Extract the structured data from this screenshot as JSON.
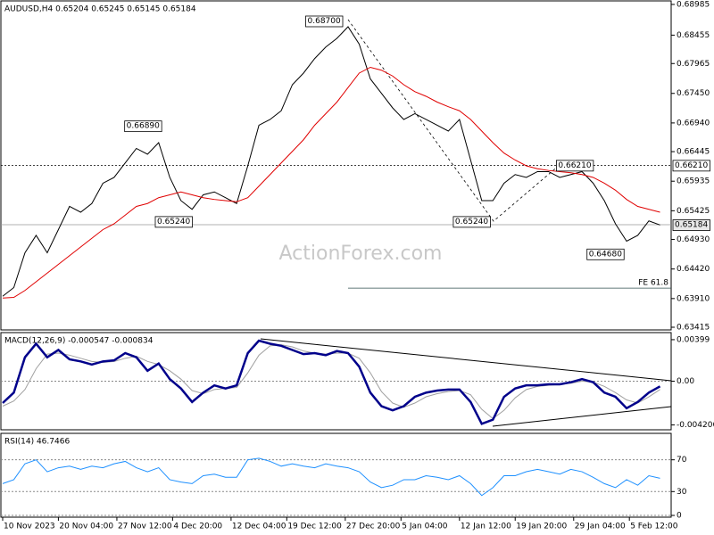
{
  "chart_data": [
    {
      "type": "line",
      "title": "AUDUSD,H4 0.65204 0.65245 0.65145 0.65184",
      "watermark": "ActionForex.com",
      "x": [
        0,
        4,
        8,
        12,
        16,
        20,
        24,
        28,
        32,
        36,
        40,
        44,
        48,
        52,
        56,
        60,
        64,
        68,
        72,
        76,
        80,
        84,
        88,
        92,
        96,
        100,
        104,
        108,
        112,
        116,
        120,
        124,
        128,
        132,
        136,
        140,
        144,
        148,
        152,
        156,
        160,
        164,
        168,
        172,
        176,
        180,
        184,
        188,
        192,
        196,
        200,
        204,
        208,
        212,
        216,
        220,
        224,
        228,
        232,
        236
      ],
      "xlim": [
        0,
        240
      ],
      "ylim": [
        0.63369,
        0.69046
      ],
      "yticks": [
        0.68985,
        0.68455,
        0.67965,
        {
          "value": 0.6745,
          "label": "0.67450"
        },
        {
          "value": 0.6694,
          "label": "0.66940"
        },
        0.66445,
        0.65935,
        0.65425,
        {
          "value": 0.6493,
          "label": "0.64930"
        },
        {
          "value": 0.6442,
          "label": "0.64420"
        },
        {
          "value": 0.6391,
          "label": "0.63910"
        },
        0.63415
      ],
      "series": [
        {
          "color": "#000000",
          "width": 1,
          "values": [
            0.6395,
            0.641,
            0.647,
            0.65,
            0.647,
            0.651,
            0.655,
            0.654,
            0.6555,
            0.659,
            0.66,
            0.6625,
            0.665,
            0.664,
            0.666,
            0.66,
            0.656,
            0.6545,
            0.657,
            0.6575,
            0.6565,
            0.6555,
            0.662,
            0.669,
            0.67,
            0.6715,
            0.676,
            0.678,
            0.6805,
            0.6825,
            0.684,
            0.686,
            0.683,
            0.677,
            0.6745,
            0.672,
            0.67,
            0.671,
            0.67,
            0.669,
            0.668,
            0.67,
            0.663,
            0.656,
            0.656,
            0.659,
            0.6605,
            0.66,
            0.661,
            0.661,
            0.66,
            0.6605,
            0.661,
            0.659,
            0.656,
            0.652,
            0.649,
            0.65,
            0.6525,
            0.6518
          ]
        },
        {
          "color": "#e00000",
          "width": 1,
          "values": [
            0.6392,
            0.6393,
            0.6405,
            0.642,
            0.6435,
            0.645,
            0.6465,
            0.648,
            0.6495,
            0.651,
            0.652,
            0.6535,
            0.655,
            0.6555,
            0.6565,
            0.657,
            0.6575,
            0.657,
            0.6565,
            0.6562,
            0.656,
            0.6558,
            0.6565,
            0.6585,
            0.6605,
            0.6625,
            0.6645,
            0.6665,
            0.669,
            0.671,
            0.673,
            0.6755,
            0.678,
            0.679,
            0.6785,
            0.6775,
            0.676,
            0.6748,
            0.674,
            0.673,
            0.6722,
            0.6715,
            0.67,
            0.668,
            0.666,
            0.6642,
            0.663,
            0.662,
            0.6615,
            0.6612,
            0.661,
            0.6608,
            0.6605,
            0.66,
            0.659,
            0.6578,
            0.6562,
            0.655,
            0.6545,
            0.654
          ]
        }
      ],
      "hlines": [
        {
          "value": 0.6621,
          "label": "0.66210",
          "style": "dotted"
        },
        {
          "value": 0.65184,
          "label": "0.65184",
          "style": "solid"
        }
      ],
      "fe_line": {
        "text": "FE 61.8",
        "value": 0.6409,
        "x_start": 124
      },
      "annotations": [
        {
          "text": "0.68700",
          "x": 122,
          "y": 0.687
        },
        {
          "text": "0.66890",
          "x": 57,
          "y": 0.6689
        },
        {
          "text": "0.65240",
          "x": 68,
          "y": 0.6524
        },
        {
          "text": "0.65240",
          "x": 175,
          "y": 0.6524
        },
        {
          "text": "0.66210",
          "x": 212,
          "y": 0.6621
        },
        {
          "text": "0.64680",
          "x": 223,
          "y": 0.6468
        }
      ]
    },
    {
      "type": "line",
      "title": "MACD(12,26,9) -0.000547 -0.000834",
      "x": [
        0,
        4,
        8,
        12,
        16,
        20,
        24,
        28,
        32,
        36,
        40,
        44,
        48,
        52,
        56,
        60,
        64,
        68,
        72,
        76,
        80,
        84,
        88,
        92,
        96,
        100,
        104,
        108,
        112,
        116,
        120,
        124,
        128,
        132,
        136,
        140,
        144,
        148,
        152,
        156,
        160,
        164,
        168,
        172,
        176,
        180,
        184,
        188,
        192,
        196,
        200,
        204,
        208,
        212,
        216,
        220,
        224,
        228,
        232,
        236
      ],
      "xlim": [
        0,
        240
      ],
      "ylim": [
        -0.00467,
        0.00467
      ],
      "yticks": [
        0.00399,
        {
          "value": 0,
          "label": "0.00"
        },
        -0.004206
      ],
      "series": [
        {
          "color": "#a0a0a0",
          "width": 1,
          "values": [
            -0.0024,
            -0.0019,
            -0.0008,
            0.0012,
            0.0026,
            0.0027,
            0.0025,
            0.0022,
            0.0019,
            0.0018,
            0.0019,
            0.0022,
            0.0024,
            0.0019,
            0.0016,
            0.001,
            0.0002,
            -0.0009,
            -0.0012,
            -0.0008,
            -0.0007,
            -0.0006,
            0.0008,
            0.0025,
            0.0034,
            0.0035,
            0.0033,
            0.0029,
            0.0027,
            0.0026,
            0.0027,
            0.0027,
            0.0022,
            0.0008,
            -0.001,
            -0.0021,
            -0.0025,
            -0.0021,
            -0.0015,
            -0.0012,
            -0.001,
            -0.0009,
            -0.0013,
            -0.0027,
            -0.0036,
            -0.0028,
            -0.0016,
            -0.0008,
            -0.0005,
            -0.0004,
            -0.0003,
            -0.0002,
            0,
            -0.0001,
            -0.0005,
            -0.0011,
            -0.0018,
            -0.0021,
            -0.0015,
            -0.0008
          ]
        },
        {
          "color": "#00008b",
          "width": 2.5,
          "values": [
            -0.0021,
            -0.0011,
            0.0023,
            0.0036,
            0.0023,
            0.003,
            0.0021,
            0.0019,
            0.0016,
            0.0019,
            0.002,
            0.0027,
            0.0023,
            0.001,
            0.0017,
            0.0002,
            -0.0007,
            -0.002,
            -0.0011,
            -0.0004,
            -0.0007,
            -0.0004,
            0.0027,
            0.0039,
            0.0036,
            0.0034,
            0.003,
            0.0026,
            0.0027,
            0.0025,
            0.0029,
            0.0027,
            0.0014,
            -0.0011,
            -0.0024,
            -0.0028,
            -0.0024,
            -0.0015,
            -0.0011,
            -0.0009,
            -0.0008,
            -0.0008,
            -0.002,
            -0.0041,
            -0.0037,
            -0.0015,
            -0.0007,
            -0.0004,
            -0.0004,
            -0.0003,
            -0.0003,
            -0.0001,
            0.0002,
            -0.0001,
            -0.0011,
            -0.0015,
            -0.0026,
            -0.002,
            -0.0011,
            -0.0005
          ]
        }
      ]
    },
    {
      "type": "line",
      "title": "RSI(14) 46.7466",
      "x": [
        0,
        4,
        8,
        12,
        16,
        20,
        24,
        28,
        32,
        36,
        40,
        44,
        48,
        52,
        56,
        60,
        64,
        68,
        72,
        76,
        80,
        84,
        88,
        92,
        96,
        100,
        104,
        108,
        112,
        116,
        120,
        124,
        128,
        132,
        136,
        140,
        144,
        148,
        152,
        156,
        160,
        164,
        168,
        172,
        176,
        180,
        184,
        188,
        192,
        196,
        200,
        204,
        208,
        212,
        216,
        220,
        224,
        228,
        232,
        236
      ],
      "xlim": [
        0,
        240
      ],
      "ylim": [
        -2.2,
        103.3
      ],
      "yticks": [
        70,
        30,
        0
      ],
      "levels": [
        70,
        30
      ],
      "xticks": [
        {
          "value": 0,
          "label": "10 Nov 2023"
        },
        {
          "value": 20,
          "label": "20 Nov 04:00"
        },
        {
          "value": 41,
          "label": "27 Nov 12:00"
        },
        {
          "value": 61,
          "label": "4 Dec 20:00"
        },
        {
          "value": 82,
          "label": "12 Dec 04:00"
        },
        {
          "value": 102,
          "label": "19 Dec 12:00"
        },
        {
          "value": 123,
          "label": "27 Dec 20:00"
        },
        {
          "value": 143,
          "label": "5 Jan 04:00"
        },
        {
          "value": 164,
          "label": "12 Jan 12:00"
        },
        {
          "value": 184,
          "label": "19 Jan 20:00"
        },
        {
          "value": 205,
          "label": "29 Jan 04:00"
        },
        {
          "value": 225,
          "label": "5 Feb 12:00"
        }
      ],
      "series": [
        {
          "color": "#1e90ff",
          "width": 1,
          "values": [
            40,
            45,
            65,
            70,
            55,
            60,
            62,
            58,
            62,
            60,
            65,
            68,
            60,
            55,
            60,
            45,
            42,
            40,
            50,
            52,
            48,
            48,
            70,
            72,
            68,
            62,
            65,
            62,
            60,
            65,
            62,
            60,
            55,
            42,
            35,
            38,
            45,
            45,
            50,
            48,
            45,
            50,
            40,
            25,
            35,
            50,
            50,
            55,
            58,
            55,
            52,
            58,
            55,
            48,
            40,
            35,
            45,
            38,
            50,
            46.7466
          ]
        }
      ]
    }
  ]
}
